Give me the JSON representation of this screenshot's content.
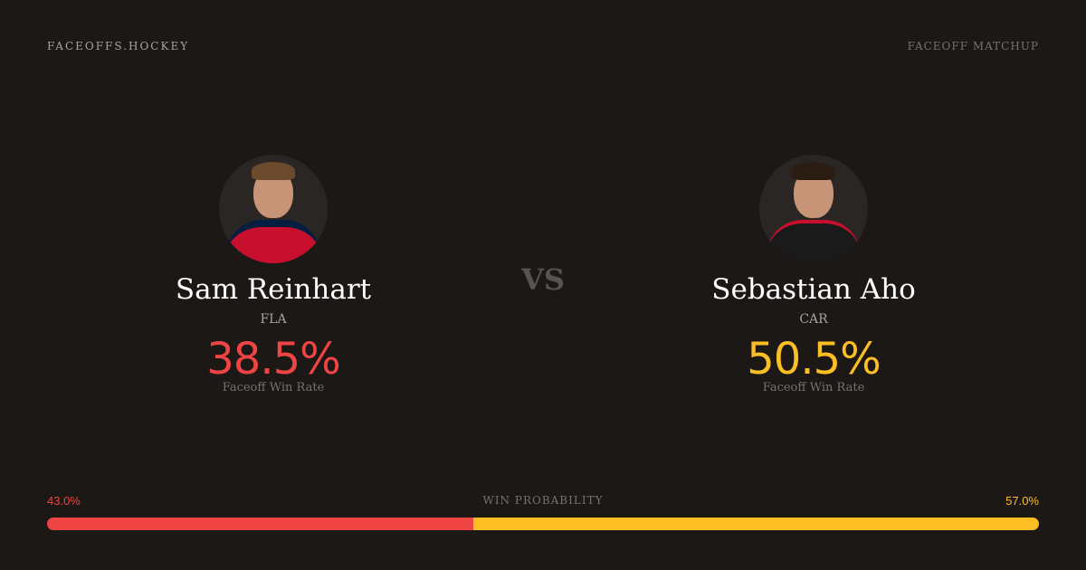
{
  "header": {
    "brand": "FACEOFFS.HOCKEY",
    "tag": "FACEOFF MATCHUP"
  },
  "vs": "VS",
  "players": [
    {
      "name": "Sam Reinhart",
      "team": "FLA",
      "rate": "38.5%",
      "rate_label": "Faceoff Win Rate",
      "color": "#ef4444",
      "jersey_color": "#c8102e"
    },
    {
      "name": "Sebastian Aho",
      "team": "CAR",
      "rate": "50.5%",
      "rate_label": "Faceoff Win Rate",
      "color": "#fbbf24",
      "jersey_color": "#1a1a1a"
    }
  ],
  "win_probability": {
    "label": "WIN PROBABILITY",
    "left": "43.0%",
    "right": "57.0%",
    "left_fraction": 0.43,
    "left_color": "#ef4444",
    "right_color": "#fbbf24"
  }
}
